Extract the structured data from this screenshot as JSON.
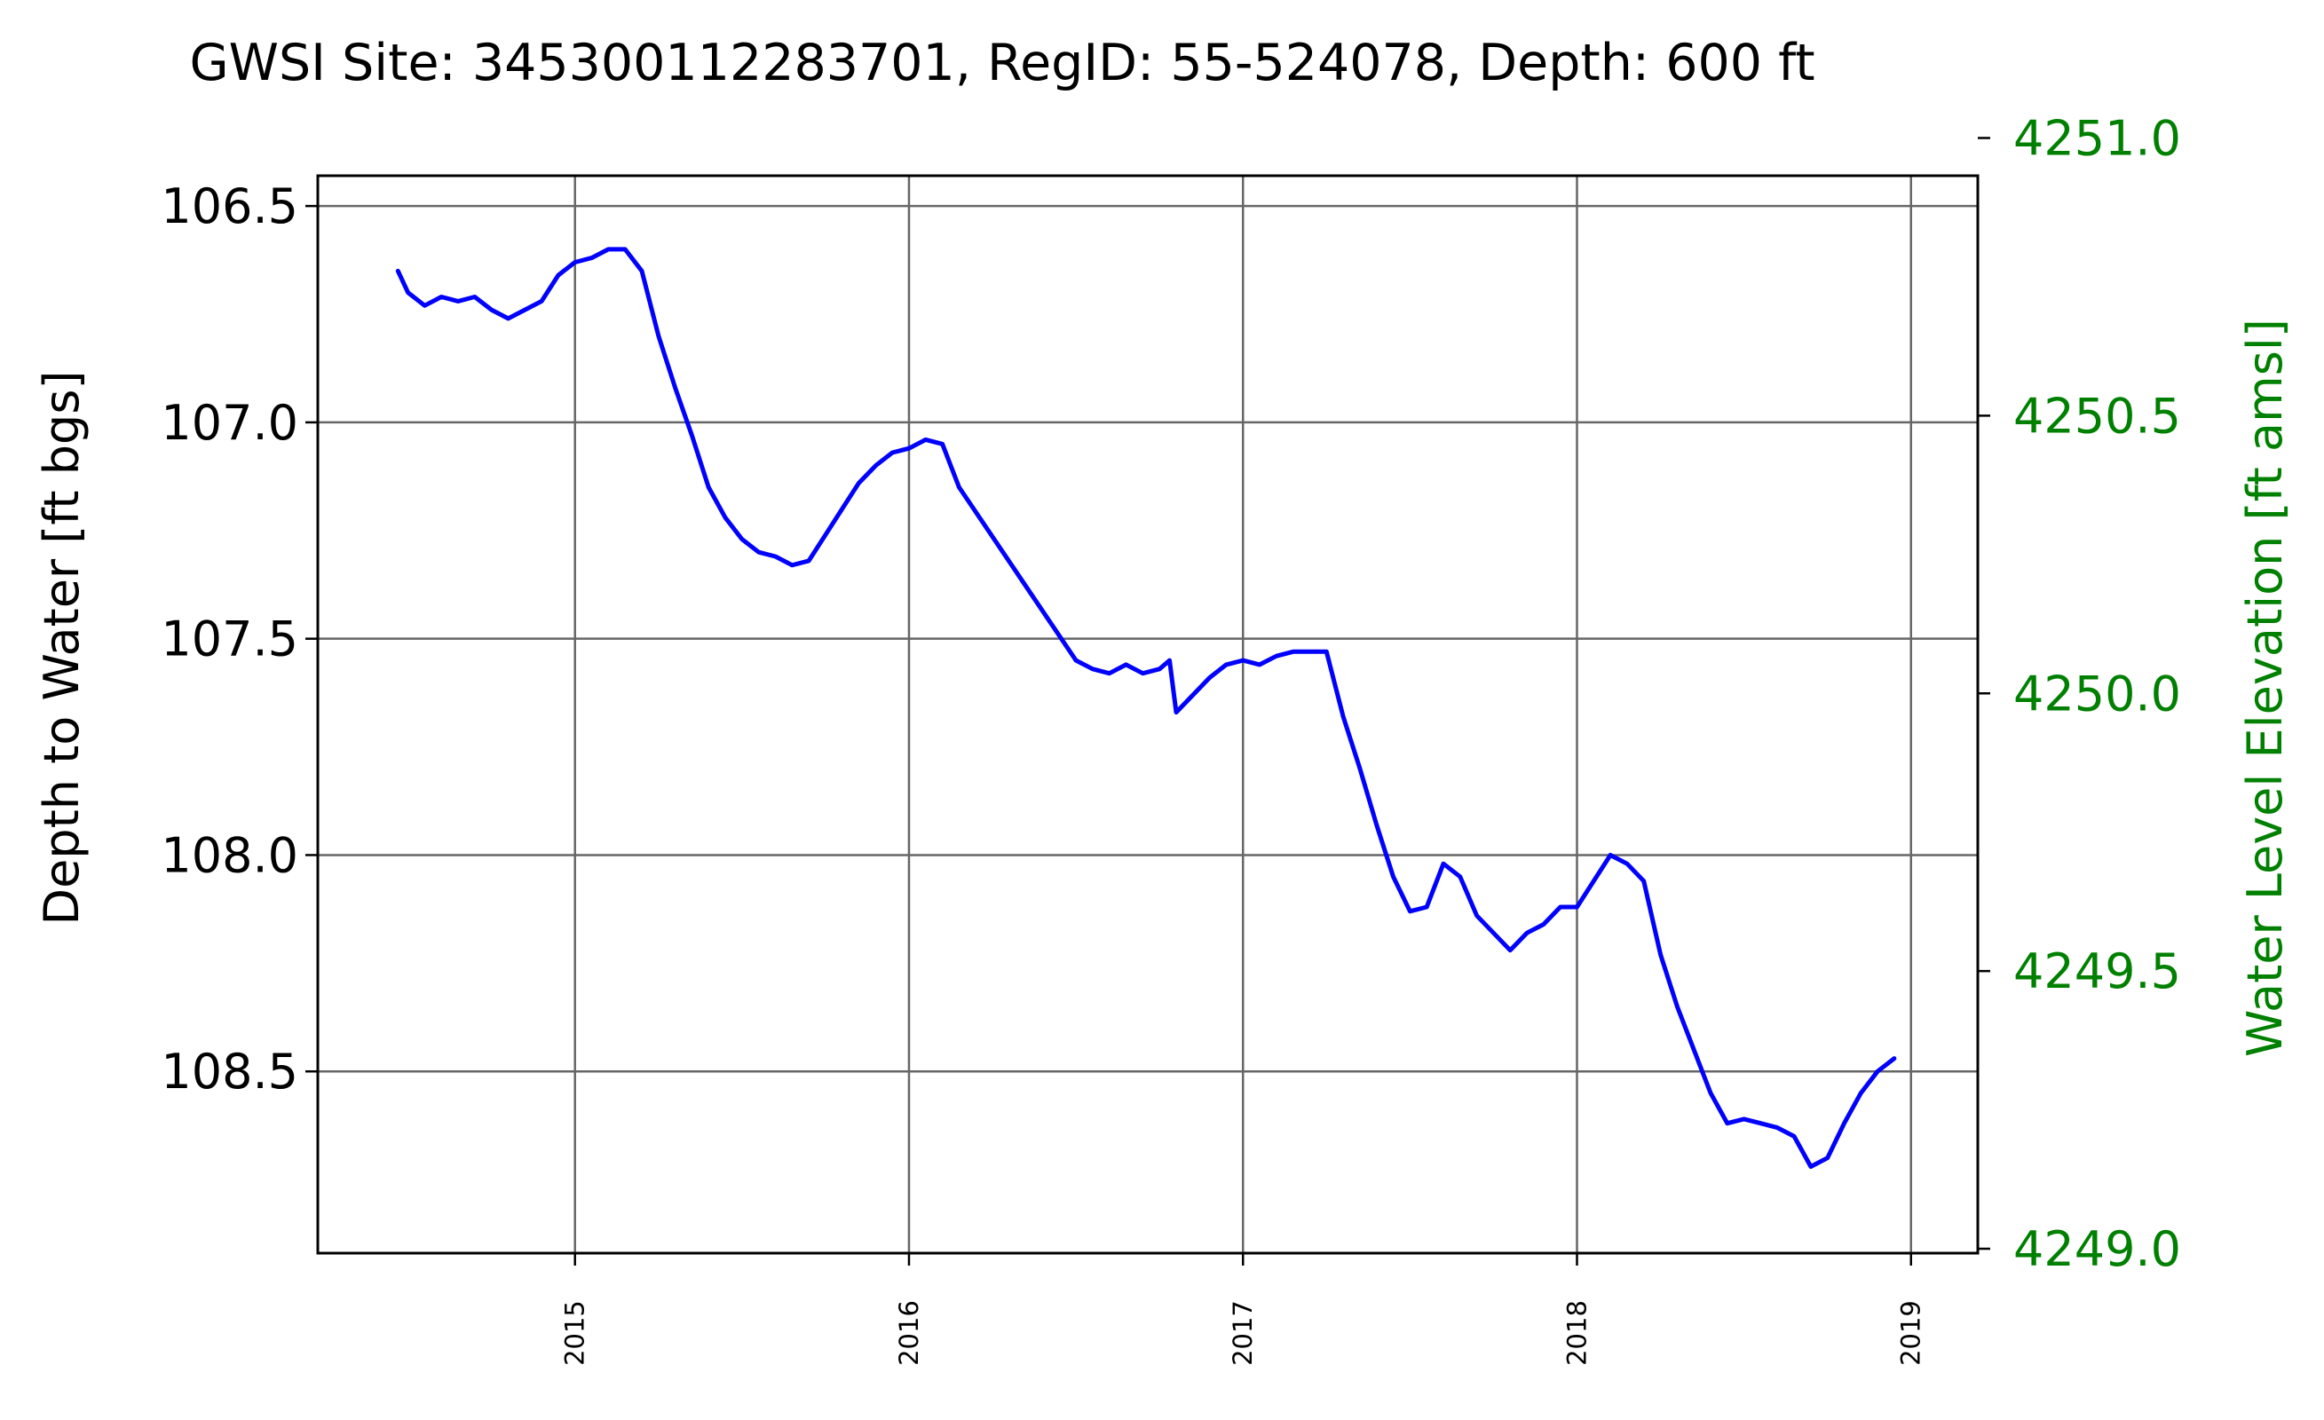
{
  "chart_data": {
    "type": "line",
    "title": "GWSI Site: 345300112283701, RegID: 55-524078, Depth: 600 ft",
    "ylabel": "Depth to Water [ft bgs]",
    "y2label": "Water Level Elevation [ft amsl]",
    "xlabel": "",
    "xlim": [
      2014.23,
      2019.2
    ],
    "ylim_inverted": [
      106.43,
      108.92
    ],
    "y2lim": [
      4250.98,
      4249.04
    ],
    "grid": true,
    "colors": {
      "series": "#0000ff",
      "right_axis": "#008000",
      "grid": "#666666"
    },
    "x_ticks": [
      "2015",
      "2016",
      "2017",
      "2018",
      "2019"
    ],
    "x_tick_values": [
      2015,
      2016,
      2017,
      2018,
      2019
    ],
    "y_ticks": [
      "106.5",
      "107.0",
      "107.5",
      "108.0",
      "108.5"
    ],
    "y_tick_values": [
      106.5,
      107.0,
      107.5,
      108.0,
      108.5
    ],
    "y2_ticks": [
      "4251.0",
      "4250.5",
      "4250.0",
      "4249.5",
      "4249.0"
    ],
    "y2_tick_values": [
      4251.0,
      4250.5,
      4250.0,
      4249.5,
      4249.0
    ],
    "series": [
      {
        "x": [
          2014.47,
          2014.5,
          2014.55,
          2014.6,
          2014.65,
          2014.7,
          2014.75,
          2014.8,
          2014.85,
          2014.9,
          2014.95,
          2015.0,
          2015.05,
          2015.1,
          2015.15,
          2015.2,
          2015.25,
          2015.3,
          2015.35,
          2015.4,
          2015.45,
          2015.5,
          2015.55,
          2015.6,
          2015.65,
          2015.7,
          2015.75,
          2015.8,
          2015.85,
          2015.9,
          2015.95,
          2016.0,
          2016.05,
          2016.1,
          2016.15,
          2016.5,
          2016.55,
          2016.6,
          2016.65,
          2016.7,
          2016.75,
          2016.78,
          2016.8,
          2016.85,
          2016.9,
          2016.95,
          2017.0,
          2017.05,
          2017.1,
          2017.15,
          2017.2,
          2017.25,
          2017.3,
          2017.35,
          2017.4,
          2017.45,
          2017.5,
          2017.55,
          2017.6,
          2017.65,
          2017.7,
          2017.75,
          2017.8,
          2017.85,
          2017.9,
          2017.95,
          2018.0,
          2018.1,
          2018.15,
          2018.2,
          2018.25,
          2018.3,
          2018.35,
          2018.4,
          2018.45,
          2018.5,
          2018.55,
          2018.6,
          2018.65,
          2018.7,
          2018.75,
          2018.8,
          2018.85,
          2018.9,
          2018.95
        ],
        "values": [
          106.65,
          106.7,
          106.73,
          106.71,
          106.72,
          106.71,
          106.74,
          106.76,
          106.74,
          106.72,
          106.66,
          106.63,
          106.62,
          106.6,
          106.6,
          106.65,
          106.8,
          106.92,
          107.03,
          107.15,
          107.22,
          107.27,
          107.3,
          107.31,
          107.33,
          107.32,
          107.26,
          107.2,
          107.14,
          107.1,
          107.07,
          107.06,
          107.04,
          107.05,
          107.15,
          107.55,
          107.57,
          107.58,
          107.56,
          107.58,
          107.57,
          107.55,
          107.67,
          107.63,
          107.59,
          107.56,
          107.55,
          107.56,
          107.54,
          107.53,
          107.53,
          107.53,
          107.68,
          107.8,
          107.93,
          108.05,
          108.13,
          108.12,
          108.02,
          108.05,
          108.14,
          108.18,
          108.22,
          108.18,
          108.16,
          108.12,
          108.12,
          108.0,
          108.02,
          108.06,
          108.23,
          108.35,
          108.45,
          108.55,
          108.62,
          108.61,
          108.62,
          108.63,
          108.65,
          108.72,
          108.7,
          108.62,
          108.55,
          108.5,
          108.47
        ]
      }
    ]
  }
}
